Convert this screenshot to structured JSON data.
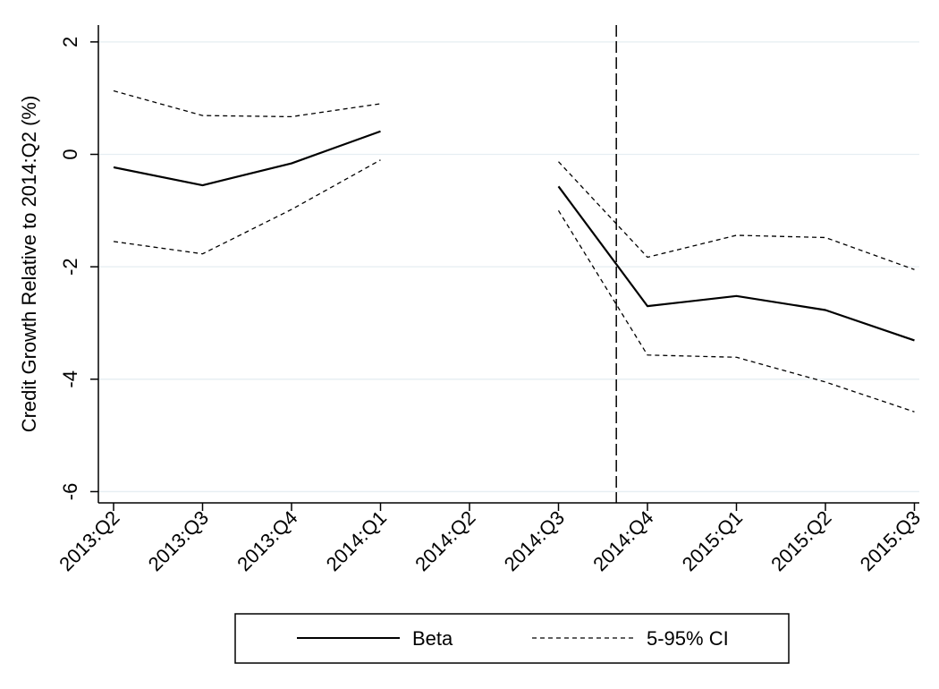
{
  "chart_data": {
    "type": "line",
    "categories": [
      "2013:Q2",
      "2013:Q3",
      "2013:Q4",
      "2014:Q1",
      "2014:Q2",
      "2014:Q3",
      "2014:Q4",
      "2015:Q1",
      "2015:Q2",
      "2015:Q3"
    ],
    "series": [
      {
        "name": "Beta",
        "style": "solid",
        "color": "#000000",
        "values": [
          -0.23,
          -0.55,
          -0.16,
          0.41,
          null,
          -0.57,
          -2.7,
          -2.52,
          -2.77,
          -3.31
        ]
      },
      {
        "name": "5-95% CI",
        "style": "dashed",
        "color": "#000000",
        "values": [
          1.13,
          0.69,
          0.67,
          0.9,
          null,
          -0.13,
          -1.83,
          -1.44,
          -1.48,
          -2.05
        ]
      },
      {
        "name": "",
        "style": "dashed",
        "color": "#000000",
        "values": [
          -1.55,
          -1.77,
          -0.98,
          -0.1,
          null,
          -1.0,
          -3.57,
          -3.61,
          -4.05,
          -4.58
        ]
      }
    ],
    "title": "",
    "xlabel": "",
    "ylabel": "Credit Growth Relative to 2014:Q2 (%)",
    "yticks": [
      2,
      0,
      -2,
      -4,
      -6
    ],
    "ylim": [
      -6.2,
      2.3
    ],
    "reference_line": {
      "position": 5.65,
      "style": "long-dash",
      "color": "#000000"
    },
    "grid": true,
    "grid_color": "#e6eef2",
    "legend": {
      "placement": "bottom",
      "entries": [
        "Beta",
        "5-95% CI"
      ]
    }
  }
}
